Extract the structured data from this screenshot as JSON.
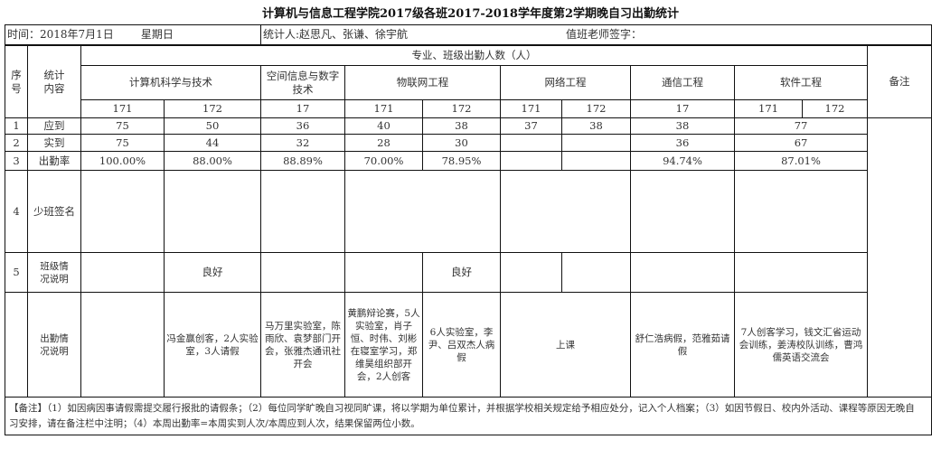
{
  "title": "计算机与信息工程学院2017级各班2017-2018学年度第2学期晚自习出勤统计",
  "info": {
    "date": "时间：2018年7月1日",
    "weekday": "星期日",
    "counters": "统计人:赵思凡、张谦、徐宇航",
    "teacher_sign": "值班老师签字："
  },
  "header": {
    "seq": "序号",
    "content": "统计内容",
    "group": "专业、班级出勤人数（人）",
    "remark": "备注",
    "majors": [
      "计算机科学与技术",
      "空间信息与数字技术",
      "物联网工程",
      "网络工程",
      "通信工程",
      "软件工程"
    ],
    "classes": [
      "171",
      "172",
      "17",
      "171",
      "172",
      "171",
      "172",
      "17",
      "171",
      "172"
    ]
  },
  "rows": [
    {
      "no": "1",
      "label": "应到",
      "values": [
        "75",
        "50",
        "36",
        "40",
        "38",
        "37",
        "38",
        "38",
        "77"
      ]
    },
    {
      "no": "2",
      "label": "实到",
      "values": [
        "75",
        "44",
        "32",
        "28",
        "30",
        "",
        "",
        "36",
        "67"
      ]
    },
    {
      "no": "3",
      "label": "出勤率",
      "values": [
        "100.00%",
        "88.00%",
        "88.89%",
        "70.00%",
        "78.95%",
        "",
        "",
        "94.74%",
        "87.01%"
      ]
    },
    {
      "no": "4",
      "label": "少班签名"
    },
    {
      "no": "5",
      "label": "班级情况说明",
      "values": [
        "",
        "良好",
        "",
        "",
        "良好",
        "",
        "",
        "",
        ""
      ]
    },
    {
      "no": "",
      "label": "出勤情况说明",
      "values": [
        "",
        "冯金赢创客，2人实验室，3人请假",
        "马万里实验室，陈雨欣、袁梦部门开会，张雅杰通讯社开会",
        "黄鹏辩论赛，5人实验室，肖子恒、时伟、刘彬在寝室学习，郑维昊组织部开会，2人创客",
        "6人实验室，李尹、吕双杰人病假",
        "上课",
        "舒仁浩病假，范雅茹请假",
        "7人创客学习，钱文汇省运动会训练，姜涛校队训练，曹鸿儒英语交流会"
      ]
    }
  ],
  "notes": "【备注】（1）如因病因事请假需提交履行报批的请假条；（2）每位同学旷晚自习视同旷课，将以学期为单位累计，并根据学校相关规定给予相应处分，记入个人档案；（3）如因节假日、校内外活动、课程等原因无晚自习安排，请在备注栏中注明；（4）本周出勤率=本周实到人次/本周应到人次，结果保留两位小数。"
}
